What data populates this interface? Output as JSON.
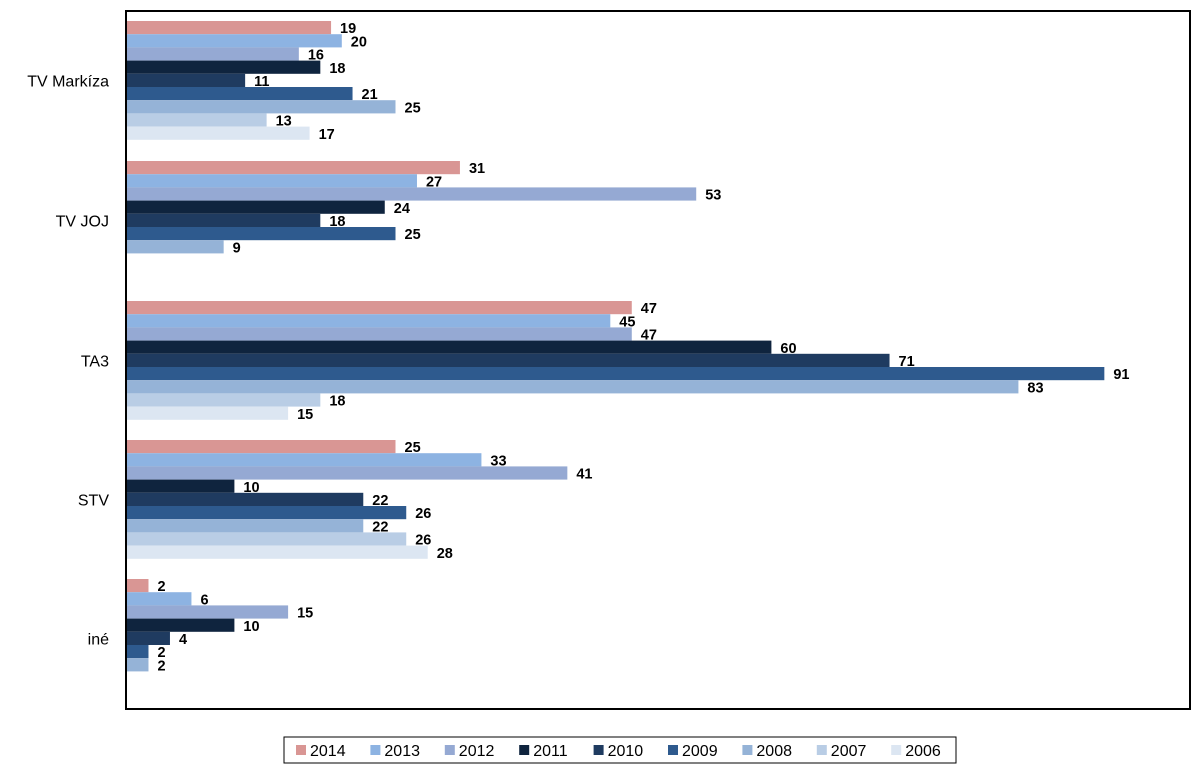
{
  "chart_data": {
    "type": "bar",
    "orientation": "horizontal",
    "title": "",
    "xlabel": "",
    "ylabel": "",
    "grid": false,
    "legend_position": "bottom",
    "xlim": [
      0,
      100
    ],
    "categories": [
      "TV Markíza",
      "TV JOJ",
      "TA3",
      "STV",
      "iné"
    ],
    "series": [
      {
        "name": "2014",
        "color": "#D99694",
        "values": [
          19,
          31,
          47,
          25,
          2
        ]
      },
      {
        "name": "2013",
        "color": "#8DB3E2",
        "values": [
          20,
          27,
          45,
          33,
          6
        ]
      },
      {
        "name": "2012",
        "color": "#95A9D3",
        "values": [
          16,
          53,
          47,
          41,
          15
        ]
      },
      {
        "name": "2011",
        "color": "#0F243E",
        "values": [
          18,
          24,
          60,
          10,
          10
        ]
      },
      {
        "name": "2010",
        "color": "#1F3B60",
        "values": [
          11,
          18,
          71,
          22,
          4
        ]
      },
      {
        "name": "2009",
        "color": "#2E5A8E",
        "values": [
          21,
          25,
          91,
          26,
          2
        ]
      },
      {
        "name": "2008",
        "color": "#95B3D7",
        "values": [
          25,
          9,
          83,
          22,
          2
        ]
      },
      {
        "name": "2007",
        "color": "#B9CDE5",
        "values": [
          13,
          null,
          18,
          26,
          null
        ]
      },
      {
        "name": "2006",
        "color": "#DCE6F2",
        "values": [
          17,
          null,
          15,
          28,
          null
        ]
      }
    ]
  }
}
